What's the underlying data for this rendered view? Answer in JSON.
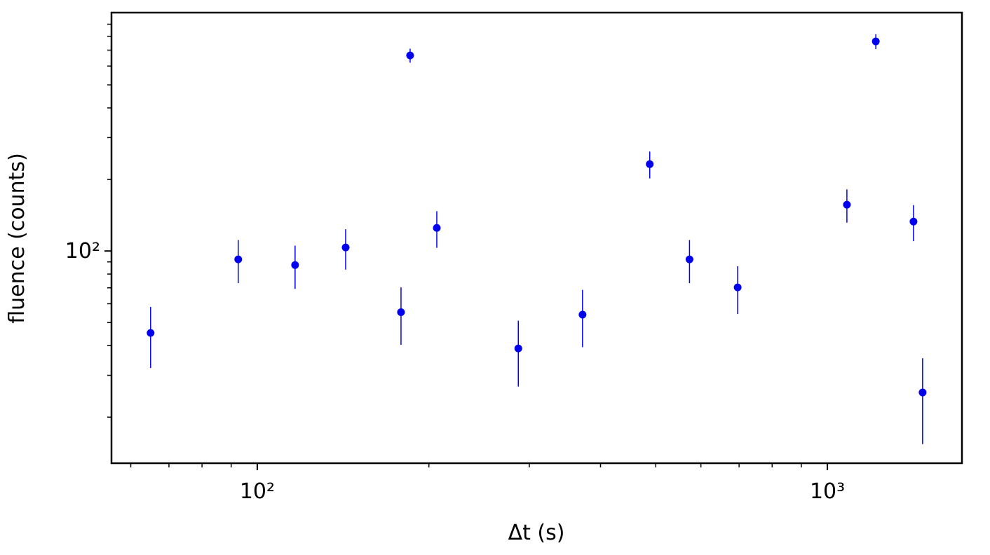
{
  "chart_data": {
    "type": "scatter",
    "xlabel": "Δt (s)",
    "ylabel": "fluence (counts)",
    "xscale": "log",
    "yscale": "log",
    "xlim": [
      55.5,
      1722
    ],
    "ylim": [
      12.8,
      1007
    ],
    "xticks": [
      {
        "value": 100,
        "label": "10²"
      },
      {
        "value": 1000,
        "label": "10³"
      }
    ],
    "yticks": [
      {
        "value": 100,
        "label": "10²"
      }
    ],
    "xminorticks": [
      60,
      70,
      80,
      90,
      200,
      300,
      400,
      500,
      600,
      700,
      800,
      900
    ],
    "yminorticks": [
      20,
      30,
      40,
      50,
      60,
      70,
      80,
      90,
      200,
      300,
      400,
      500,
      600,
      700,
      800,
      900
    ],
    "series": [
      {
        "color": "#0000ee",
        "x": [
          65,
          92.6,
          116.5,
          142.9,
          178.7,
          185.4,
          206.5,
          287,
          372,
          488,
          573,
          696,
          1082,
          1216,
          1416,
          1469
        ],
        "values": [
          45.2,
          92.2,
          87.3,
          103.5,
          55.3,
          665,
          125.1,
          38.9,
          54.0,
          232,
          92.2,
          70.3,
          156.6,
          762,
          133,
          25.4
        ],
        "yerr": [
          13,
          19,
          18,
          20,
          15,
          45,
          22,
          12,
          14.6,
          30,
          19,
          16,
          25,
          55,
          23,
          10
        ]
      }
    ]
  }
}
